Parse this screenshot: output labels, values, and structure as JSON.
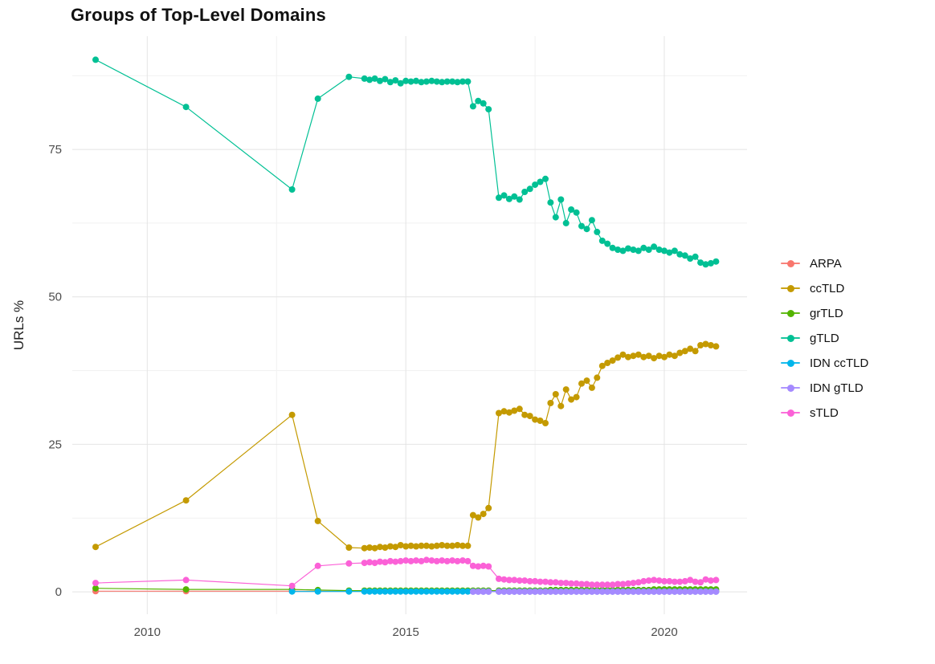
{
  "chart_data": {
    "type": "line",
    "title": "Groups of Top-Level Domains",
    "xlabel": "",
    "ylabel": "URLs %",
    "xlim": [
      2008.55,
      2021.6
    ],
    "ylim": [
      -3.8,
      94.2
    ],
    "x_ticks": [
      2010,
      2015,
      2020
    ],
    "y_ticks": [
      0,
      25,
      50,
      75
    ],
    "x_minor": [
      2012.5,
      2017.5
    ],
    "y_minor": [
      12.5,
      37.5,
      62.5,
      87.5
    ],
    "grid": true,
    "legend_position": "right",
    "marker": "point",
    "x": [
      2009,
      2010.75,
      2012.8,
      2013.3,
      2013.9,
      2014.2,
      2014.3,
      2014.4,
      2014.5,
      2014.6,
      2014.7,
      2014.8,
      2014.9,
      2015.0,
      2015.1,
      2015.2,
      2015.3,
      2015.4,
      2015.5,
      2015.6,
      2015.7,
      2015.8,
      2015.9,
      2016.0,
      2016.1,
      2016.2,
      2016.3,
      2016.4,
      2016.5,
      2016.6,
      2016.8,
      2016.9,
      2017.0,
      2017.1,
      2017.2,
      2017.3,
      2017.4,
      2017.5,
      2017.6,
      2017.7,
      2017.8,
      2017.9,
      2018.0,
      2018.1,
      2018.2,
      2018.3,
      2018.4,
      2018.5,
      2018.6,
      2018.7,
      2018.8,
      2018.9,
      2019.0,
      2019.1,
      2019.2,
      2019.3,
      2019.4,
      2019.5,
      2019.6,
      2019.7,
      2019.8,
      2019.9,
      2020.0,
      2020.1,
      2020.2,
      2020.3,
      2020.4,
      2020.5,
      2020.6,
      2020.7,
      2020.8,
      2020.9,
      2021.0
    ],
    "series": [
      {
        "name": "ARPA",
        "color": "#F8766D",
        "values": [
          0.1,
          0.1,
          0.1,
          0.1,
          0.1,
          0.1,
          0.1,
          0.1,
          0.1,
          0.1,
          0.1,
          0.1,
          0.1,
          0.1,
          0.1,
          0.1,
          0.1,
          0.1,
          0.1,
          0.1,
          0.1,
          0.1,
          0.1,
          0.1,
          0.1,
          0.1,
          0.1,
          0.1,
          0.1,
          0.1,
          0.1,
          0.1,
          0.1,
          0.1,
          0.1,
          0.1,
          0.1,
          0.1,
          0.1,
          0.1,
          0.1,
          0.1,
          0.1,
          0.1,
          0.1,
          0.1,
          0.1,
          0.1,
          0.1,
          0.1,
          0.1,
          0.1,
          0.1,
          0.1,
          0.1,
          0.1,
          0.1,
          0.1,
          0.1,
          0.1,
          0.1,
          0.1,
          0.1,
          0.1,
          0.1,
          0.1,
          0.1,
          0.1,
          0.1,
          0.1,
          0.1,
          0.1,
          0.1
        ]
      },
      {
        "name": "ccTLD",
        "color": "#C49A00",
        "values": [
          7.6,
          15.5,
          30.0,
          12.0,
          7.5,
          7.4,
          7.5,
          7.4,
          7.6,
          7.5,
          7.7,
          7.6,
          7.9,
          7.7,
          7.8,
          7.7,
          7.8,
          7.8,
          7.7,
          7.8,
          7.9,
          7.8,
          7.8,
          7.9,
          7.8,
          7.8,
          13.0,
          12.6,
          13.2,
          14.2,
          30.3,
          30.6,
          30.4,
          30.7,
          31.0,
          30.0,
          29.8,
          29.2,
          29.0,
          28.6,
          32.0,
          33.5,
          31.5,
          34.3,
          32.6,
          33.0,
          35.3,
          35.8,
          34.6,
          36.3,
          38.3,
          38.8,
          39.2,
          39.7,
          40.2,
          39.8,
          40.0,
          40.2,
          39.8,
          40.0,
          39.6,
          40.0,
          39.8,
          40.2,
          40.0,
          40.5,
          40.8,
          41.2,
          40.8,
          41.8,
          42.0,
          41.8,
          41.6
        ]
      },
      {
        "name": "grTLD",
        "color": "#53B400",
        "values": [
          0.6,
          0.4,
          0.4,
          0.3,
          0.2,
          0.2,
          0.2,
          0.2,
          0.2,
          0.2,
          0.2,
          0.2,
          0.2,
          0.2,
          0.2,
          0.2,
          0.2,
          0.2,
          0.2,
          0.2,
          0.2,
          0.2,
          0.2,
          0.2,
          0.2,
          0.2,
          0.2,
          0.2,
          0.2,
          0.2,
          0.2,
          0.2,
          0.2,
          0.2,
          0.2,
          0.2,
          0.2,
          0.2,
          0.2,
          0.2,
          0.3,
          0.3,
          0.3,
          0.3,
          0.3,
          0.3,
          0.3,
          0.3,
          0.3,
          0.3,
          0.3,
          0.3,
          0.3,
          0.3,
          0.3,
          0.3,
          0.3,
          0.3,
          0.3,
          0.3,
          0.4,
          0.4,
          0.4,
          0.4,
          0.4,
          0.4,
          0.4,
          0.4,
          0.4,
          0.4,
          0.4,
          0.4,
          0.4
        ]
      },
      {
        "name": "gTLD",
        "color": "#00C094",
        "values": [
          90.2,
          82.2,
          68.2,
          83.6,
          87.3,
          87.0,
          86.8,
          87.0,
          86.6,
          86.9,
          86.4,
          86.7,
          86.2,
          86.6,
          86.5,
          86.6,
          86.4,
          86.5,
          86.6,
          86.5,
          86.4,
          86.5,
          86.5,
          86.4,
          86.5,
          86.5,
          82.3,
          83.2,
          82.8,
          81.8,
          66.8,
          67.2,
          66.6,
          67.0,
          66.5,
          67.8,
          68.3,
          69.0,
          69.5,
          70.0,
          66.0,
          63.5,
          66.5,
          62.5,
          64.8,
          64.3,
          62.0,
          61.5,
          63.0,
          61.0,
          59.5,
          59.0,
          58.3,
          58.0,
          57.8,
          58.2,
          58.0,
          57.8,
          58.3,
          58.0,
          58.5,
          58.0,
          57.8,
          57.5,
          57.8,
          57.2,
          57.0,
          56.5,
          56.8,
          55.8,
          55.5,
          55.7,
          56.0
        ]
      },
      {
        "name": "IDN ccTLD",
        "color": "#00B6EB",
        "values": [
          null,
          null,
          0.05,
          0.05,
          0.05,
          0.05,
          0.05,
          0.05,
          0.05,
          0.05,
          0.05,
          0.05,
          0.05,
          0.05,
          0.05,
          0.05,
          0.05,
          0.05,
          0.05,
          0.05,
          0.05,
          0.05,
          0.05,
          0.05,
          0.05,
          0.05,
          0.05,
          0.05,
          0.05,
          0.05,
          0.05,
          0.05,
          0.05,
          0.05,
          0.05,
          0.05,
          0.05,
          0.05,
          0.05,
          0.05,
          0.05,
          0.05,
          0.05,
          0.05,
          0.05,
          0.05,
          0.05,
          0.05,
          0.05,
          0.05,
          0.05,
          0.05,
          0.05,
          0.05,
          0.05,
          0.05,
          0.05,
          0.05,
          0.05,
          0.05,
          0.05,
          0.05,
          0.05,
          0.05,
          0.05,
          0.05,
          0.05,
          0.05,
          0.05,
          0.05,
          0.05,
          0.05,
          0.05
        ]
      },
      {
        "name": "IDN gTLD",
        "color": "#A58AFF",
        "values": [
          null,
          null,
          null,
          null,
          null,
          null,
          null,
          null,
          null,
          null,
          null,
          null,
          null,
          null,
          null,
          null,
          null,
          null,
          null,
          null,
          null,
          null,
          null,
          null,
          null,
          null,
          0.03,
          0.03,
          0.03,
          0.03,
          0.03,
          0.03,
          0.03,
          0.03,
          0.03,
          0.03,
          0.03,
          0.03,
          0.03,
          0.03,
          0.03,
          0.03,
          0.03,
          0.03,
          0.03,
          0.03,
          0.03,
          0.03,
          0.03,
          0.03,
          0.03,
          0.03,
          0.03,
          0.03,
          0.03,
          0.03,
          0.03,
          0.03,
          0.03,
          0.03,
          0.03,
          0.03,
          0.03,
          0.03,
          0.03,
          0.03,
          0.03,
          0.03,
          0.03,
          0.03,
          0.03,
          0.03,
          0.03
        ]
      },
      {
        "name": "sTLD",
        "color": "#FB61D7",
        "values": [
          1.5,
          2.0,
          1.0,
          4.4,
          4.8,
          4.9,
          5.0,
          4.9,
          5.1,
          5.0,
          5.2,
          5.1,
          5.2,
          5.3,
          5.2,
          5.3,
          5.2,
          5.4,
          5.3,
          5.2,
          5.3,
          5.2,
          5.3,
          5.2,
          5.3,
          5.2,
          4.4,
          4.3,
          4.4,
          4.3,
          2.2,
          2.1,
          2.0,
          2.0,
          1.9,
          1.9,
          1.8,
          1.8,
          1.7,
          1.7,
          1.6,
          1.6,
          1.5,
          1.5,
          1.4,
          1.4,
          1.3,
          1.3,
          1.2,
          1.2,
          1.2,
          1.2,
          1.2,
          1.3,
          1.3,
          1.4,
          1.5,
          1.6,
          1.8,
          1.9,
          2.0,
          1.9,
          1.8,
          1.8,
          1.7,
          1.7,
          1.8,
          2.0,
          1.7,
          1.6,
          2.1,
          1.9,
          2.0
        ]
      }
    ]
  }
}
